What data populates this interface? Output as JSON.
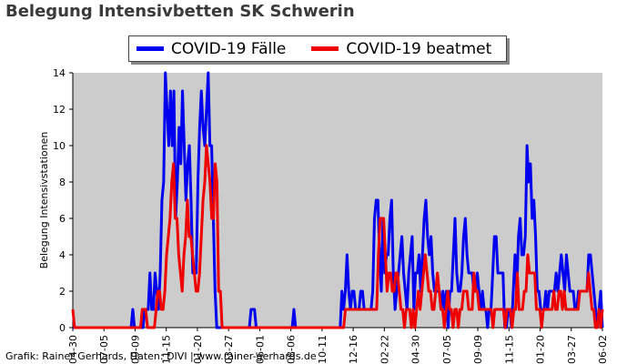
{
  "title": "Belegung Intensivbetten SK Schwerin",
  "credit": "Grafik: Rainer Gerhards, Daten: DIVI | www.rainer-gerhards.de",
  "chart_data": {
    "type": "line",
    "title": "Belegung Intensivbetten SK Schwerin",
    "ylabel": "Belegung Intensivstationen",
    "xlabel": "",
    "ylim": [
      0,
      14
    ],
    "yticks": [
      0,
      2,
      4,
      6,
      8,
      10,
      12,
      14
    ],
    "grid": false,
    "background": "#cccccc",
    "legend": "top-center",
    "x_tick_labels": [
      "04-30",
      "07-05",
      "09-09",
      "11-15",
      "01-20",
      "03-27",
      "06-01",
      "08-06",
      "10-11",
      "12-16",
      "02-22",
      "04-30",
      "07-05",
      "09-09",
      "11-15",
      "01-20",
      "03-27",
      "06-02"
    ],
    "series": [
      {
        "name": "COVID-19 Fälle",
        "color": "#0000ee",
        "values": [
          0,
          0,
          0,
          0,
          0,
          0,
          0,
          0,
          0,
          0,
          0,
          0,
          0,
          0,
          0,
          0,
          0,
          0,
          0,
          0,
          0,
          0,
          0,
          0,
          0,
          0,
          0,
          0,
          0,
          0,
          0,
          0,
          0,
          0,
          0,
          1,
          0,
          0,
          0,
          0,
          0,
          0,
          1,
          1,
          1,
          3,
          1,
          1,
          3,
          2,
          1,
          3,
          7,
          8,
          14,
          12,
          10,
          13,
          10,
          13,
          6,
          8,
          11,
          9,
          13,
          10,
          7,
          9,
          10,
          7,
          3,
          3,
          3,
          8,
          11,
          13,
          11,
          10,
          12,
          14,
          10,
          10,
          6,
          2,
          0,
          0,
          0,
          0,
          0,
          0,
          0,
          0,
          0,
          0,
          0,
          0,
          0,
          0,
          0,
          0,
          0,
          0,
          0,
          0,
          1,
          1,
          1,
          0,
          0,
          0,
          0,
          0,
          0,
          0,
          0,
          0,
          0,
          0,
          0,
          0,
          0,
          0,
          0,
          0,
          0,
          0,
          0,
          0,
          0,
          1,
          0,
          0,
          0,
          0,
          0,
          0,
          0,
          0,
          0,
          0,
          0,
          0,
          0,
          0,
          0,
          0,
          0,
          0,
          0,
          0,
          0,
          0,
          0,
          0,
          0,
          0,
          0,
          2,
          1,
          2,
          4,
          2,
          1,
          2,
          2,
          1,
          1,
          1,
          2,
          2,
          1,
          1,
          1,
          1,
          1,
          2,
          6,
          7,
          7,
          4,
          2,
          6,
          3,
          4,
          4,
          6,
          7,
          3,
          1,
          2,
          3,
          4,
          5,
          3,
          2,
          1,
          3,
          4,
          5,
          1,
          3,
          3,
          4,
          2,
          4,
          6,
          7,
          5,
          4,
          5,
          3,
          2,
          2,
          2,
          2,
          1,
          2,
          1,
          2,
          0,
          2,
          2,
          4,
          6,
          3,
          2,
          2,
          3,
          5,
          6,
          4,
          3,
          3,
          3,
          2,
          2,
          3,
          2,
          1,
          2,
          1,
          1,
          0,
          1,
          1,
          3,
          5,
          5,
          3,
          3,
          3,
          3,
          0,
          0,
          1,
          1,
          0,
          2,
          4,
          2,
          5,
          6,
          4,
          4,
          5,
          10,
          8,
          9,
          6,
          7,
          5,
          2,
          2,
          1,
          1,
          1,
          2,
          1,
          2,
          2,
          2,
          2,
          3,
          2,
          3,
          4,
          3,
          2,
          4,
          3,
          2,
          2,
          2,
          1,
          1,
          2,
          2,
          2,
          2,
          2,
          2,
          4,
          4,
          3,
          2,
          1,
          0,
          1,
          2,
          0
        ],
        "values_note": "omit"
      },
      {
        "name": "COVID-19 beatmet",
        "color": "#ee0000",
        "values": [
          1,
          0,
          0,
          0,
          0,
          0,
          0,
          0,
          0,
          0,
          0,
          0,
          0,
          0,
          0,
          0,
          0,
          0,
          0,
          0,
          0,
          0,
          0,
          0,
          0,
          0,
          0,
          0,
          0,
          0,
          0,
          0,
          0,
          0,
          0,
          0,
          0,
          0,
          0,
          0,
          1,
          1,
          1,
          0,
          0,
          0,
          0,
          0,
          1,
          2,
          2,
          1,
          1,
          2,
          4,
          5,
          6,
          8,
          9,
          6,
          6,
          4,
          3,
          2,
          4,
          5,
          7,
          5,
          5,
          4,
          3,
          2,
          2,
          3,
          5,
          7,
          8,
          10,
          9,
          8,
          6,
          6,
          9,
          8,
          2,
          2,
          0,
          0,
          0,
          0,
          0,
          0,
          0,
          0,
          0,
          0,
          0,
          0,
          0,
          0,
          0,
          0,
          0,
          0,
          0,
          0,
          0,
          0,
          0,
          0,
          0,
          0,
          0,
          0,
          0,
          0,
          0,
          0,
          0,
          0,
          0,
          0,
          0,
          0,
          0,
          0,
          0,
          0,
          0,
          0,
          0,
          0,
          0,
          0,
          0,
          0,
          0,
          0,
          0,
          0,
          0,
          0,
          0,
          0,
          0,
          0,
          0,
          0,
          0,
          0,
          0,
          0,
          0,
          0,
          0,
          0,
          0,
          1,
          1,
          1,
          1,
          1,
          1,
          1,
          1,
          1,
          1,
          1,
          1,
          1,
          1,
          1,
          1,
          1,
          1,
          1,
          4,
          6,
          6,
          6,
          4,
          2,
          3,
          3,
          2,
          2,
          3,
          3,
          2,
          1,
          1,
          0,
          1,
          1,
          1,
          0,
          1,
          0,
          1,
          2,
          1,
          2,
          3,
          4,
          3,
          2,
          2,
          1,
          1,
          2,
          3,
          2,
          1,
          1,
          0,
          1,
          2,
          1,
          1,
          0,
          1,
          1,
          0,
          1,
          1,
          2,
          2,
          2,
          1,
          1,
          1,
          3,
          2,
          2,
          1,
          1,
          1,
          1,
          1,
          1,
          1,
          1,
          0,
          1,
          1,
          1,
          1,
          1,
          1,
          0,
          1,
          1,
          1,
          0,
          1,
          1,
          3,
          1,
          1,
          1,
          2,
          2,
          4,
          3,
          3,
          3,
          3,
          1,
          1,
          1,
          0,
          1,
          1,
          1,
          1,
          1,
          1,
          2,
          1,
          1,
          2,
          2,
          1,
          2,
          1,
          1,
          1,
          1,
          1,
          1,
          1,
          1,
          2,
          2,
          2,
          2,
          2,
          3,
          2,
          1,
          1,
          0,
          0,
          1,
          0,
          1
        ]
      }
    ]
  }
}
